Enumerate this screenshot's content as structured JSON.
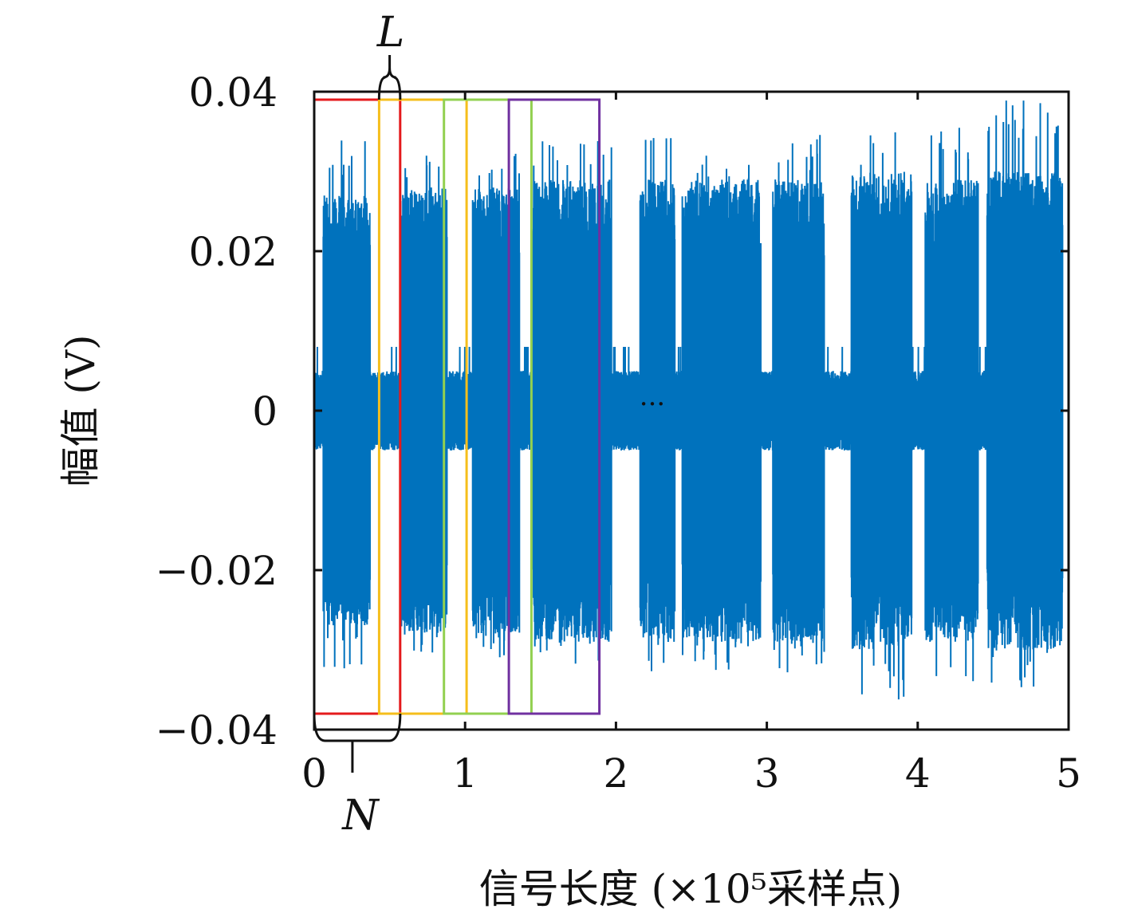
{
  "chart_data": {
    "type": "line",
    "xlabel": "信号长度 (×10⁵采样点)",
    "ylabel": "幅值 (V)",
    "xlim": [
      0,
      5
    ],
    "ylim": [
      -0.04,
      0.04
    ],
    "xticks": [
      0,
      1,
      2,
      3,
      4,
      5
    ],
    "xtick_labels": [
      "0",
      "1",
      "2",
      "3",
      "4",
      "5"
    ],
    "yticks": [
      0.04,
      0.02,
      0,
      -0.02,
      -0.04
    ],
    "ytick_labels": [
      "0.04",
      "0.02",
      "0",
      "−0.02",
      "−0.04"
    ],
    "grid": false,
    "legend": "none",
    "series": [
      {
        "color": "#0072BD",
        "description_segments": [
          {
            "x_start": 0.0,
            "x_end": 0.06,
            "amplitude": 0.005
          },
          {
            "x_start": 0.06,
            "x_end": 0.37,
            "amplitude": 0.027,
            "peak_max": 0.034,
            "peak_min": -0.033
          },
          {
            "x_start": 0.37,
            "x_end": 0.57,
            "amplitude": 0.005
          },
          {
            "x_start": 0.57,
            "x_end": 0.88,
            "amplitude": 0.028,
            "peak_max": 0.032,
            "peak_min": -0.031
          },
          {
            "x_start": 0.88,
            "x_end": 1.05,
            "amplitude": 0.005
          },
          {
            "x_start": 1.05,
            "x_end": 1.36,
            "amplitude": 0.028,
            "peak_max": 0.033,
            "peak_min": -0.031
          },
          {
            "x_start": 1.36,
            "x_end": 1.45,
            "amplitude": 0.005
          },
          {
            "x_start": 1.45,
            "x_end": 1.97,
            "amplitude": 0.029,
            "peak_max": 0.034,
            "peak_min": -0.032
          },
          {
            "x_start": 1.97,
            "x_end": 2.16,
            "amplitude": 0.005
          },
          {
            "x_start": 2.16,
            "x_end": 2.39,
            "amplitude": 0.029,
            "peak_max": 0.035,
            "peak_min": -0.033
          },
          {
            "x_start": 2.39,
            "x_end": 2.44,
            "amplitude": 0.005
          },
          {
            "x_start": 2.44,
            "x_end": 2.96,
            "amplitude": 0.029,
            "peak_max": 0.034,
            "peak_min": -0.033
          },
          {
            "x_start": 2.96,
            "x_end": 3.04,
            "amplitude": 0.005
          },
          {
            "x_start": 3.04,
            "x_end": 3.38,
            "amplitude": 0.029,
            "peak_max": 0.035,
            "peak_min": -0.033
          },
          {
            "x_start": 3.38,
            "x_end": 3.56,
            "amplitude": 0.005
          },
          {
            "x_start": 3.56,
            "x_end": 3.96,
            "amplitude": 0.03,
            "peak_max": 0.036,
            "peak_min": -0.037
          },
          {
            "x_start": 3.96,
            "x_end": 4.05,
            "amplitude": 0.005
          },
          {
            "x_start": 4.05,
            "x_end": 4.4,
            "amplitude": 0.029,
            "peak_max": 0.036,
            "peak_min": -0.034
          },
          {
            "x_start": 4.4,
            "x_end": 4.46,
            "amplitude": 0.005
          },
          {
            "x_start": 4.46,
            "x_end": 4.96,
            "amplitude": 0.03,
            "peak_max": 0.039,
            "peak_min": -0.035
          }
        ]
      }
    ],
    "windows": [
      {
        "x_start": 0.0,
        "x_end": 0.57,
        "color": "#E41A1C"
      },
      {
        "x_start": 0.43,
        "x_end": 1.01,
        "color": "#F5BE1B"
      },
      {
        "x_start": 0.86,
        "x_end": 1.44,
        "color": "#92D050"
      },
      {
        "x_start": 1.29,
        "x_end": 1.89,
        "color": "#7030A0"
      }
    ],
    "window_ylim": [
      -0.038,
      0.039
    ],
    "annotations": {
      "window_length_label": "L",
      "window_step_label": "N",
      "ellipsis": "···"
    }
  }
}
